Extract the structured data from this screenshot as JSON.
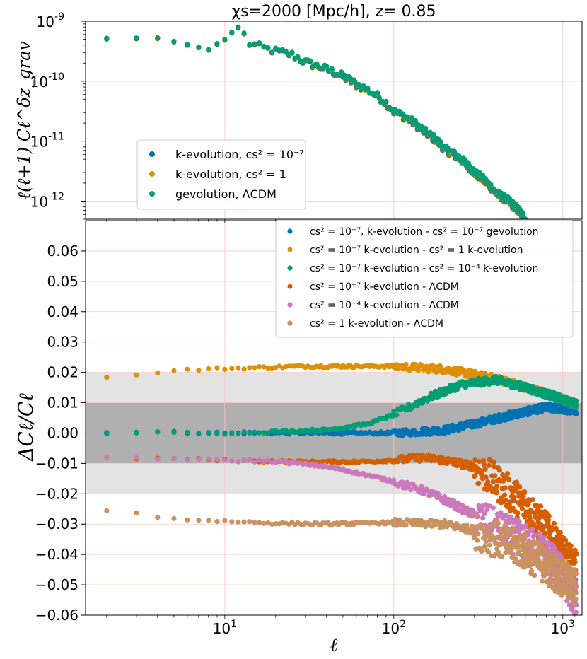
{
  "chart_data": [
    {
      "type": "scatter",
      "title": "χs=2000 [Mpc/h], z= 0.85",
      "xscale": "log",
      "yscale": "log",
      "xlim": [
        1.5,
        1300
      ],
      "ylim": [
        5e-13,
        1e-09
      ],
      "ylabel": "ℓ(ℓ+1) Cℓ^δz_grav",
      "yticks": [
        "10^-9",
        "10^-10",
        "10^-11",
        "10^-12"
      ],
      "legend_position": "center-left",
      "legend": [
        "k-evolution, cs² = 10⁻⁷",
        "k-evolution, cs² = 1",
        "gevolution, ΛCDM"
      ],
      "colors": [
        "#0173b2",
        "#de8f05",
        "#029e73"
      ],
      "x": [
        2,
        4,
        6,
        8,
        10,
        12,
        14,
        16,
        20,
        25,
        30,
        40,
        60,
        100,
        150,
        200,
        300,
        400,
        600
      ],
      "y": [
        5.2e-10,
        5.3e-10,
        4.1e-10,
        3.4e-10,
        5e-10,
        8e-10,
        4.3e-10,
        3.8e-10,
        3.2e-10,
        2.8e-10,
        2.1e-10,
        1.6e-10,
        9e-11,
        3.2e-11,
        1.5e-11,
        7.5e-12,
        3e-12,
        1.4e-12,
        5e-13
      ]
    },
    {
      "type": "scatter",
      "xscale": "log",
      "xlim": [
        1.5,
        1300
      ],
      "ylim": [
        -0.06,
        0.07
      ],
      "xlabel": "ℓ",
      "ylabel": "ΔCℓ/Cℓ",
      "xticks": [
        "10^1",
        "10^2",
        "10^3"
      ],
      "yticks": [
        "0.06",
        "0.05",
        "0.04",
        "0.03",
        "0.02",
        "0.01",
        "0.00",
        "−0.01",
        "−0.02",
        "−0.03",
        "−0.04",
        "−0.05",
        "−0.06"
      ],
      "bands": [
        {
          "from": -0.02,
          "to": 0.02,
          "color": "#e3e3e3"
        },
        {
          "from": -0.01,
          "to": 0.01,
          "color": "#b0b0b0"
        }
      ],
      "legend_position": "top-right",
      "series": [
        {
          "name": "cs² = 10⁻⁷, k-evolution - cs² = 10⁻⁷ gevolution",
          "color": "#0173b2",
          "x": [
            2,
            10,
            50,
            100,
            200,
            300,
            500,
            800,
            1200
          ],
          "y": [
            0.0005,
            0.0,
            0.0,
            0.0,
            0.001,
            0.003,
            0.006,
            0.0085,
            0.0075
          ]
        },
        {
          "name": "cs² = 10⁻⁷  k-evolution - cs² = 1  k-evolution",
          "color": "#de8f05",
          "x": [
            2,
            3,
            4,
            6,
            10,
            30,
            100,
            200,
            400,
            800,
            1200
          ],
          "y": [
            0.0185,
            0.019,
            0.0202,
            0.0208,
            0.0213,
            0.022,
            0.022,
            0.021,
            0.018,
            0.013,
            0.0095
          ]
        },
        {
          "name": "cs² = 10⁻⁷  k-evolution - cs² = 10⁻⁴  k-evolution",
          "color": "#029e73",
          "x": [
            2,
            10,
            40,
            70,
            100,
            150,
            250,
            400,
            600,
            900,
            1200
          ],
          "y": [
            0.0,
            0.0,
            0.001,
            0.003,
            0.006,
            0.011,
            0.016,
            0.0175,
            0.015,
            0.012,
            0.0095
          ]
        },
        {
          "name": "cs² = 10⁻⁷  k-evolution - ΛCDM",
          "color": "#d55e00",
          "x": [
            2,
            10,
            30,
            60,
            100,
            150,
            200,
            300,
            400,
            600,
            800,
            1000,
            1200
          ],
          "y": [
            -0.008,
            -0.009,
            -0.0095,
            -0.0095,
            -0.009,
            -0.008,
            -0.009,
            -0.011,
            -0.016,
            -0.024,
            -0.032,
            -0.04,
            -0.045
          ]
        },
        {
          "name": "cs² = 10⁻⁴  k-evolution - ΛCDM",
          "color": "#cc78bc",
          "x": [
            2,
            10,
            20,
            40,
            60,
            100,
            150,
            200,
            300,
            400,
            600,
            800,
            1000,
            1200
          ],
          "y": [
            -0.008,
            -0.009,
            -0.0093,
            -0.011,
            -0.013,
            -0.016,
            -0.019,
            -0.022,
            -0.027,
            -0.031,
            -0.036,
            -0.04,
            -0.047,
            -0.055
          ]
        },
        {
          "name": "cs² = 1  k-evolution - ΛCDM",
          "color": "#ca9161",
          "x": [
            2,
            3,
            4,
            6,
            10,
            20,
            40,
            100,
            200,
            300,
            400,
            600,
            800,
            1000,
            1200
          ],
          "y": [
            -0.0258,
            -0.0263,
            -0.0275,
            -0.0285,
            -0.029,
            -0.0297,
            -0.03,
            -0.0295,
            -0.03,
            -0.032,
            -0.035,
            -0.039,
            -0.044,
            -0.048,
            -0.051
          ]
        }
      ]
    }
  ]
}
